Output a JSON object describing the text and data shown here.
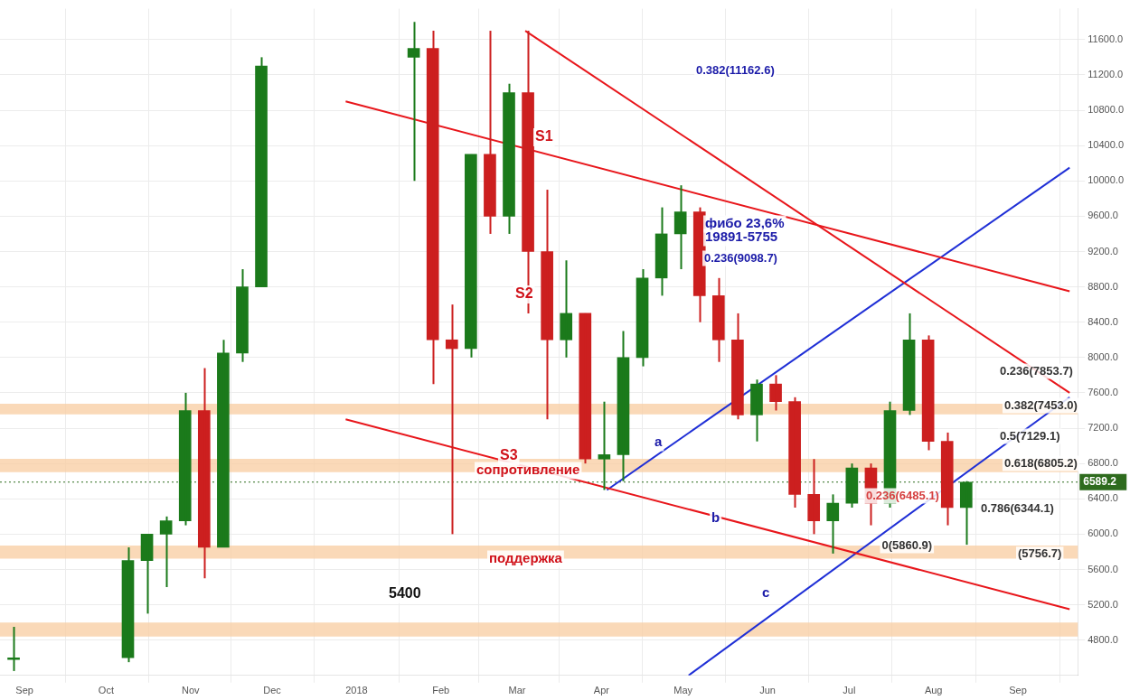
{
  "chart_data": {
    "type": "candlestick",
    "x": [
      "2017-08-28",
      "2017-10-09",
      "2017-10-16",
      "2017-10-23",
      "2017-10-30",
      "2017-11-06",
      "2017-11-13",
      "2017-11-20",
      "2017-11-27",
      "2018-01-22",
      "2018-01-29",
      "2018-02-05",
      "2018-02-12",
      "2018-02-19",
      "2018-02-26",
      "2018-03-05",
      "2018-03-12",
      "2018-03-19",
      "2018-03-26",
      "2018-04-02",
      "2018-04-09",
      "2018-04-16",
      "2018-04-23",
      "2018-04-30",
      "2018-05-07",
      "2018-05-14",
      "2018-05-21",
      "2018-05-28",
      "2018-06-04",
      "2018-06-11",
      "2018-06-18",
      "2018-06-25",
      "2018-07-02",
      "2018-07-09",
      "2018-07-16",
      "2018-07-23",
      "2018-07-30",
      "2018-08-06",
      "2018-08-13"
    ],
    "ohlc": [
      [
        4580,
        4950,
        4450,
        4600
      ],
      [
        4600,
        5850,
        4550,
        5700
      ],
      [
        5700,
        6000,
        5100,
        6000
      ],
      [
        6000,
        6200,
        5400,
        6150
      ],
      [
        6150,
        7600,
        6100,
        7400
      ],
      [
        7400,
        7880,
        5500,
        5850
      ],
      [
        5850,
        8200,
        5850,
        8050
      ],
      [
        8050,
        9000,
        7950,
        8800
      ],
      [
        8800,
        11400,
        8800,
        11300
      ],
      [
        11400,
        11800,
        10000,
        11500
      ],
      [
        11500,
        11700,
        7700,
        8200
      ],
      [
        8200,
        8600,
        6000,
        8100
      ],
      [
        8100,
        10300,
        8000,
        10300
      ],
      [
        10300,
        11700,
        9400,
        9600
      ],
      [
        9600,
        11100,
        9400,
        11000
      ],
      [
        11000,
        11700,
        8500,
        9200
      ],
      [
        9200,
        9900,
        7300,
        8200
      ],
      [
        8200,
        9100,
        8000,
        8500
      ],
      [
        8500,
        8500,
        6800,
        6850
      ],
      [
        6850,
        7500,
        6500,
        6900
      ],
      [
        6900,
        8300,
        6600,
        8000
      ],
      [
        8000,
        9000,
        7900,
        8900
      ],
      [
        8900,
        9700,
        8700,
        9400
      ],
      [
        9400,
        9950,
        9000,
        9650
      ],
      [
        9650,
        9700,
        8400,
        8700
      ],
      [
        8700,
        8900,
        7950,
        8200
      ],
      [
        8200,
        8500,
        7300,
        7350
      ],
      [
        7350,
        7750,
        7050,
        7700
      ],
      [
        7700,
        7800,
        7400,
        7500
      ],
      [
        7500,
        7550,
        6300,
        6450
      ],
      [
        6450,
        6850,
        6000,
        6150
      ],
      [
        6150,
        6450,
        5780,
        6350
      ],
      [
        6350,
        6800,
        6300,
        6750
      ],
      [
        6750,
        6800,
        6100,
        6350
      ],
      [
        6350,
        7500,
        6300,
        7400
      ],
      [
        7400,
        8500,
        7350,
        8200
      ],
      [
        8200,
        8250,
        6950,
        7050
      ],
      [
        7050,
        7150,
        6100,
        6300
      ],
      [
        6300,
        6600,
        5880,
        6589.2
      ]
    ],
    "colors": [
      "#1b7a1b",
      "#1b7a1b",
      "#1b7a1b",
      "#1b7a1b",
      "#1b7a1b",
      "#cc1f1f",
      "#1b7a1b",
      "#1b7a1b",
      "#1b7a1b",
      "#1b7a1b",
      "#cc1f1f",
      "#cc1f1f",
      "#1b7a1b",
      "#cc1f1f",
      "#1b7a1b",
      "#cc1f1f",
      "#cc1f1f",
      "#1b7a1b",
      "#cc1f1f",
      "#1b7a1b",
      "#1b7a1b",
      "#1b7a1b",
      "#1b7a1b",
      "#1b7a1b",
      "#cc1f1f",
      "#cc1f1f",
      "#cc1f1f",
      "#1b7a1b",
      "#cc1f1f",
      "#cc1f1f",
      "#cc1f1f",
      "#1b7a1b",
      "#1b7a1b",
      "#cc1f1f",
      "#1b7a1b",
      "#1b7a1b",
      "#cc1f1f",
      "#cc1f1f",
      "#1b7a1b"
    ],
    "series": [
      {
        "type": "line",
        "color": "#e8161b",
        "x": [
          "2017-12-28",
          "2018-09-20"
        ],
        "values": [
          10900,
          8750
        ]
      },
      {
        "type": "line",
        "color": "#e8161b",
        "x": [
          "2017-12-28",
          "2018-09-20"
        ],
        "values": [
          7300,
          5150
        ]
      },
      {
        "type": "line",
        "color": "#e8161b",
        "x": [
          "2018-03-04",
          "2018-09-20"
        ],
        "values": [
          11700,
          7600
        ]
      },
      {
        "type": "line",
        "color": "#1f2fd6",
        "x": [
          "2018-05-03",
          "2018-09-20"
        ],
        "values": [
          4400,
          7550
        ]
      },
      {
        "type": "line",
        "color": "#1f2fd6",
        "x": [
          "2018-04-03",
          "2018-09-20"
        ],
        "values": [
          6500,
          10150
        ]
      }
    ],
    "xlim": [
      "2017-08-23",
      "2018-09-23"
    ],
    "xticks": [
      {
        "value": "2017-09-01",
        "label": "Sep"
      },
      {
        "value": "2017-10-01",
        "label": "Oct"
      },
      {
        "value": "2017-11-01",
        "label": "Nov"
      },
      {
        "value": "2017-12-01",
        "label": "Dec"
      },
      {
        "value": "2018-01-01",
        "label": "2018"
      },
      {
        "value": "2018-02-01",
        "label": "Feb"
      },
      {
        "value": "2018-03-01",
        "label": "Mar"
      },
      {
        "value": "2018-04-01",
        "label": "Apr"
      },
      {
        "value": "2018-05-01",
        "label": "May"
      },
      {
        "value": "2018-06-01",
        "label": "Jun"
      },
      {
        "value": "2018-07-01",
        "label": "Jul"
      },
      {
        "value": "2018-08-01",
        "label": "Aug"
      },
      {
        "value": "2018-09-01",
        "label": "Sep"
      }
    ],
    "ylim": [
      4400,
      11950
    ],
    "yticks": [
      {
        "value": 4800,
        "label": "4800.0"
      },
      {
        "value": 5200,
        "label": "5200.0"
      },
      {
        "value": 5600,
        "label": "5600.0"
      },
      {
        "value": 6000,
        "label": "6000.0"
      },
      {
        "value": 6400,
        "label": "6400.0"
      },
      {
        "value": 6800,
        "label": "6800.0"
      },
      {
        "value": 7200,
        "label": "7200.0"
      },
      {
        "value": 7600,
        "label": "7600.0"
      },
      {
        "value": 8000,
        "label": "8000.0"
      },
      {
        "value": 8400,
        "label": "8400.0"
      },
      {
        "value": 8800,
        "label": "8800.0"
      },
      {
        "value": 9200,
        "label": "9200.0"
      },
      {
        "value": 9600,
        "label": "9600.0"
      },
      {
        "value": 10000,
        "label": "10000.0"
      },
      {
        "value": 10400,
        "label": "10400.0"
      },
      {
        "value": 10800,
        "label": "10800.0"
      },
      {
        "value": 11200,
        "label": "11200.0"
      },
      {
        "value": 11600,
        "label": "11600.0"
      }
    ],
    "grid": true,
    "ref_lines": [
      {
        "axis": "y",
        "value": 6589.2,
        "label": "6589.2",
        "color": "#2e6b1e",
        "line_style": "dotted"
      }
    ],
    "bands": [
      {
        "axis": "y",
        "from": 7357,
        "to": 7476,
        "color": "#f9cfa6"
      },
      {
        "axis": "y",
        "from": 6703,
        "to": 6852,
        "color": "#f9cfa6"
      },
      {
        "axis": "y",
        "from": 5722,
        "to": 5870,
        "color": "#f9cfa6"
      },
      {
        "axis": "y",
        "from": 4840,
        "to": 4998,
        "color": "#f9cfa6"
      }
    ],
    "annotations": [
      "S1",
      "S2",
      "S3",
      "сопротивление",
      "поддержка",
      "5400",
      "a",
      "b",
      "c",
      "фибо 23,6%",
      "19891-5755",
      "0.382(11162.6)",
      "0.236(9098.7)",
      "0.236(7853.7)",
      {
        "text": "0.382(7453.0)",
        "x": "2018-08-27",
        "y": 7456
      },
      "0.5(7129.1)",
      {
        "text": "0.618(6805.2)",
        "x": "2018-08-27",
        "y": 6802
      },
      "0.786(6344.1)",
      "0.236(6485.1)",
      {
        "text": "0(5860.9)",
        "x": "2018-07-13",
        "y": 5870
      },
      {
        "text": "(5756.7)",
        "x": "2018-09-01",
        "y": 5771
      }
    ]
  }
}
